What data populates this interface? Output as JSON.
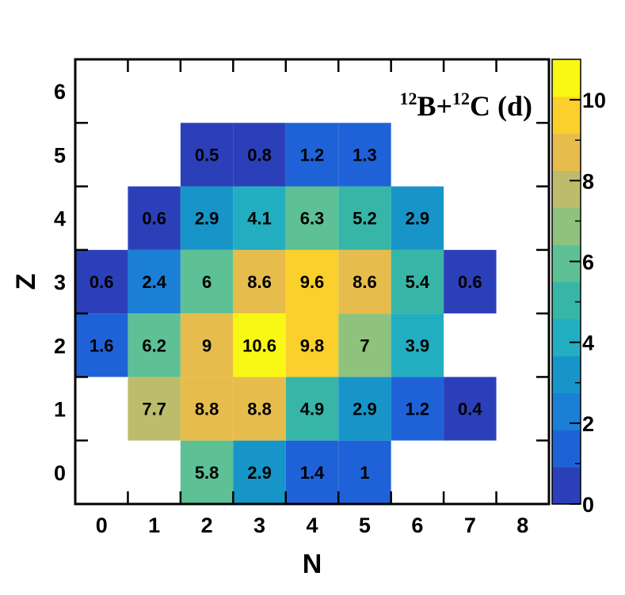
{
  "chart_data": {
    "type": "heatmap",
    "title": {
      "part1_sup": "12",
      "part1": "B+",
      "part2_sup": "12",
      "part2": "C (d)"
    },
    "xlabel": "N",
    "ylabel": "Z",
    "x_ticks": [
      "0",
      "1",
      "2",
      "3",
      "4",
      "5",
      "6",
      "7",
      "8"
    ],
    "y_ticks": [
      "0",
      "1",
      "2",
      "3",
      "4",
      "5",
      "6"
    ],
    "xlim": [
      -0.5,
      8.5
    ],
    "ylim": [
      -0.5,
      6.5
    ],
    "colorbar": {
      "min": 0,
      "max": 11,
      "ticks": [
        "0",
        "2",
        "4",
        "6",
        "8",
        "10"
      ]
    },
    "palette": [
      "#2b40b8",
      "#1f62d8",
      "#1b7fd6",
      "#1795c8",
      "#22aec0",
      "#37b6a8",
      "#5ec095",
      "#8fc27c",
      "#bdbc6c",
      "#e6bd4c",
      "#fbcf2c",
      "#f9f714"
    ],
    "cells": [
      {
        "n": 2,
        "z": 0,
        "value": 5.8,
        "label": "5.8"
      },
      {
        "n": 3,
        "z": 0,
        "value": 2.9,
        "label": "2.9"
      },
      {
        "n": 4,
        "z": 0,
        "value": 1.4,
        "label": "1.4"
      },
      {
        "n": 5,
        "z": 0,
        "value": 1,
        "label": "1"
      },
      {
        "n": 1,
        "z": 1,
        "value": 7.7,
        "label": "7.7"
      },
      {
        "n": 2,
        "z": 1,
        "value": 8.8,
        "label": "8.8"
      },
      {
        "n": 3,
        "z": 1,
        "value": 8.8,
        "label": "8.8"
      },
      {
        "n": 4,
        "z": 1,
        "value": 4.9,
        "label": "4.9"
      },
      {
        "n": 5,
        "z": 1,
        "value": 2.9,
        "label": "2.9"
      },
      {
        "n": 6,
        "z": 1,
        "value": 1.2,
        "label": "1.2"
      },
      {
        "n": 7,
        "z": 1,
        "value": 0.4,
        "label": "0.4"
      },
      {
        "n": 0,
        "z": 2,
        "value": 1.6,
        "label": "1.6"
      },
      {
        "n": 1,
        "z": 2,
        "value": 6.2,
        "label": "6.2"
      },
      {
        "n": 2,
        "z": 2,
        "value": 9,
        "label": "9"
      },
      {
        "n": 3,
        "z": 2,
        "value": 10.6,
        "label": "10.6"
      },
      {
        "n": 4,
        "z": 2,
        "value": 9.8,
        "label": "9.8"
      },
      {
        "n": 5,
        "z": 2,
        "value": 7,
        "label": "7"
      },
      {
        "n": 6,
        "z": 2,
        "value": 3.9,
        "label": "3.9"
      },
      {
        "n": 0,
        "z": 3,
        "value": 0.6,
        "label": "0.6"
      },
      {
        "n": 1,
        "z": 3,
        "value": 2.4,
        "label": "2.4"
      },
      {
        "n": 2,
        "z": 3,
        "value": 6,
        "label": "6"
      },
      {
        "n": 3,
        "z": 3,
        "value": 8.6,
        "label": "8.6"
      },
      {
        "n": 4,
        "z": 3,
        "value": 9.6,
        "label": "9.6"
      },
      {
        "n": 5,
        "z": 3,
        "value": 8.6,
        "label": "8.6"
      },
      {
        "n": 6,
        "z": 3,
        "value": 5.4,
        "label": "5.4"
      },
      {
        "n": 7,
        "z": 3,
        "value": 0.6,
        "label": "0.6"
      },
      {
        "n": 1,
        "z": 4,
        "value": 0.6,
        "label": "0.6"
      },
      {
        "n": 2,
        "z": 4,
        "value": 2.9,
        "label": "2.9"
      },
      {
        "n": 3,
        "z": 4,
        "value": 4.1,
        "label": "4.1"
      },
      {
        "n": 4,
        "z": 4,
        "value": 6.3,
        "label": "6.3"
      },
      {
        "n": 5,
        "z": 4,
        "value": 5.2,
        "label": "5.2"
      },
      {
        "n": 6,
        "z": 4,
        "value": 2.9,
        "label": "2.9"
      },
      {
        "n": 2,
        "z": 5,
        "value": 0.5,
        "label": "0.5"
      },
      {
        "n": 3,
        "z": 5,
        "value": 0.8,
        "label": "0.8"
      },
      {
        "n": 4,
        "z": 5,
        "value": 1.2,
        "label": "1.2"
      },
      {
        "n": 5,
        "z": 5,
        "value": 1.3,
        "label": "1.3"
      }
    ]
  }
}
